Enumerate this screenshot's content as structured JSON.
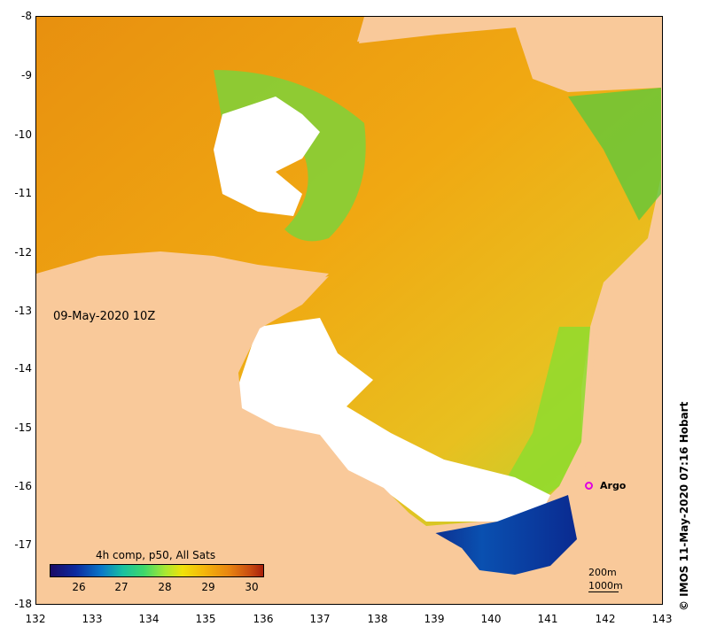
{
  "map": {
    "date": "09-May-2020 10Z",
    "argo_label": "Argo",
    "scale_200": "200m",
    "scale_1000": "1000m",
    "credit": "© IMOS 11-May-2020 07:16 Hobart",
    "colors": {
      "land": "#f9c99a",
      "cloud": "#ffffff",
      "argo": "#e000e0"
    }
  },
  "axes": {
    "x_ticks": [
      "132",
      "133",
      "134",
      "135",
      "136",
      "137",
      "138",
      "139",
      "140",
      "141",
      "142",
      "143"
    ],
    "y_ticks": [
      "-8",
      "-9",
      "-10",
      "-11",
      "-12",
      "-13",
      "-14",
      "-15",
      "-16",
      "-17",
      "-18"
    ]
  },
  "colorbar": {
    "title": "4h comp, p50, All Sats",
    "ticks": [
      "26",
      "27",
      "28",
      "29",
      "30"
    ]
  }
}
